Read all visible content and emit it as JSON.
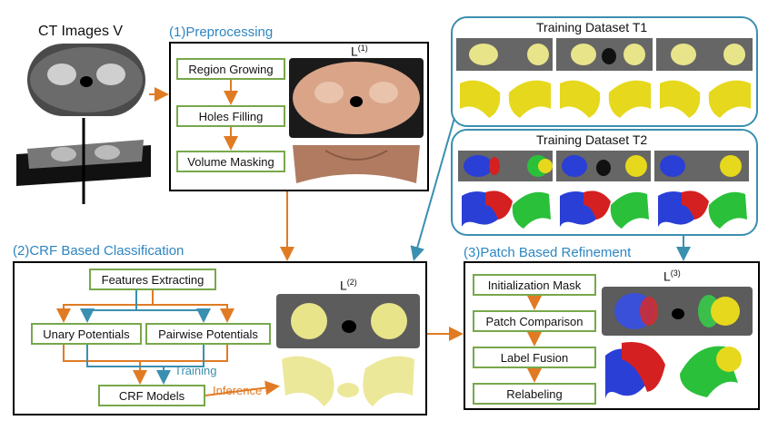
{
  "ct_images": {
    "label": "CT Images V"
  },
  "preprocessing": {
    "title": "(1)Preprocessing",
    "steps": [
      "Region Growing",
      "Holes Filling",
      "Volume Masking"
    ],
    "output_label": "L",
    "output_sup": "(1)"
  },
  "training_t1": {
    "title": "Training Dataset T1"
  },
  "training_t2": {
    "title": "Training Dataset T2"
  },
  "crf": {
    "title": "(2)CRF Based Classification",
    "features": "Features Extracting",
    "unary": "Unary Potentials",
    "pairwise": "Pairwise Potentials",
    "models": "CRF Models",
    "training_label": "Training",
    "inference_label": "Inference",
    "output_label": "L",
    "output_sup": "(2)"
  },
  "refinement": {
    "title": "(3)Patch Based Refinement",
    "steps": [
      "Initialization Mask",
      "Patch Comparison",
      "Label Fusion",
      "Relabeling"
    ],
    "output_label": "L",
    "output_sup": "(3)"
  },
  "colors": {
    "blue": "#2e86c1",
    "orange": "#e07b24",
    "green": "#77a84b",
    "teal": "#3b8fb0"
  }
}
